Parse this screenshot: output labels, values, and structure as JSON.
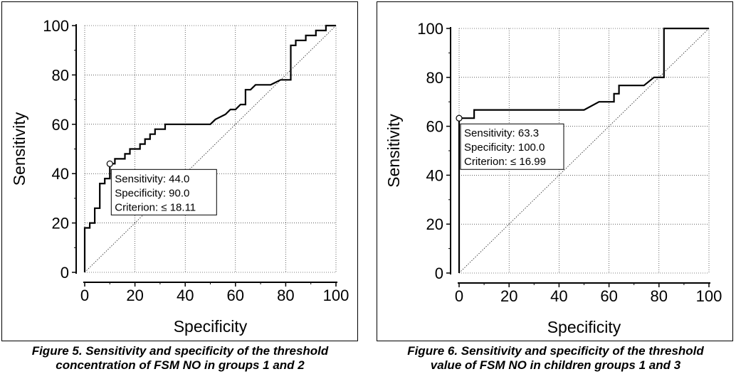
{
  "figures": [
    {
      "caption_line1": "Figure 5. Sensitivity and specificity of the threshold",
      "caption_line2": "concentration of FSM NO in groups 1 and 2"
    },
    {
      "caption_line1": "Figure 6. Sensitivity and specificity of the threshold",
      "caption_line2": "value of FSM NO in children groups 1 and 3"
    }
  ],
  "chart_data": [
    {
      "type": "line",
      "xlabel": "Specificity",
      "ylabel": "Sensitivity",
      "xlim": [
        0,
        100
      ],
      "ylim": [
        0,
        100
      ],
      "x_ticks": [
        0,
        20,
        40,
        60,
        80,
        100
      ],
      "y_ticks": [
        0,
        20,
        40,
        60,
        80,
        100
      ],
      "grid": true,
      "series": [
        {
          "role": "roc",
          "points": [
            [
              0,
              0
            ],
            [
              0,
              18
            ],
            [
              2,
              18
            ],
            [
              2,
              20
            ],
            [
              4,
              20
            ],
            [
              4,
              26
            ],
            [
              6,
              26
            ],
            [
              6,
              36
            ],
            [
              8,
              36
            ],
            [
              8,
              38
            ],
            [
              10,
              38
            ],
            [
              10,
              44
            ],
            [
              12,
              44
            ],
            [
              12,
              46
            ],
            [
              16,
              46
            ],
            [
              16,
              48
            ],
            [
              18,
              48
            ],
            [
              18,
              50
            ],
            [
              20,
              50
            ],
            [
              22,
              50
            ],
            [
              22,
              52
            ],
            [
              24,
              52
            ],
            [
              24,
              54
            ],
            [
              26,
              54
            ],
            [
              26,
              56
            ],
            [
              28,
              56
            ],
            [
              28,
              58
            ],
            [
              32,
              58
            ],
            [
              32,
              60
            ],
            [
              50,
              60
            ],
            [
              52,
              62
            ],
            [
              56,
              64
            ],
            [
              58,
              66
            ],
            [
              60,
              66
            ],
            [
              62,
              68
            ],
            [
              64,
              68
            ],
            [
              64,
              74
            ],
            [
              66,
              74
            ],
            [
              68,
              76
            ],
            [
              74,
              76
            ],
            [
              78,
              78
            ],
            [
              82,
              78
            ],
            [
              82,
              92
            ],
            [
              84,
              92
            ],
            [
              84,
              94
            ],
            [
              88,
              94
            ],
            [
              88,
              96
            ],
            [
              92,
              96
            ],
            [
              92,
              98
            ],
            [
              96,
              98
            ],
            [
              96,
              100
            ],
            [
              100,
              100
            ]
          ]
        },
        {
          "role": "reference",
          "points": [
            [
              0,
              0
            ],
            [
              100,
              100
            ]
          ]
        }
      ],
      "marker": {
        "x": 10,
        "y": 44
      },
      "annotation": {
        "sensitivity": "Sensitivity: 44.0",
        "specificity": "Specificity: 90.0",
        "criterion": "Criterion: ≤ 18.11"
      }
    },
    {
      "type": "line",
      "xlabel": "Specificity",
      "ylabel": "Sensitivity",
      "xlim": [
        0,
        100
      ],
      "ylim": [
        0,
        100
      ],
      "x_ticks": [
        0,
        20,
        40,
        60,
        80,
        100
      ],
      "y_ticks": [
        0,
        20,
        40,
        60,
        80,
        100
      ],
      "grid": true,
      "series": [
        {
          "role": "roc",
          "points": [
            [
              0,
              0
            ],
            [
              0,
              63.3
            ],
            [
              6,
              63.3
            ],
            [
              6,
              66.7
            ],
            [
              50,
              66.7
            ],
            [
              56,
              70
            ],
            [
              62,
              70
            ],
            [
              62,
              73.3
            ],
            [
              64,
              73.3
            ],
            [
              64,
              76.7
            ],
            [
              74,
              76.7
            ],
            [
              78,
              80
            ],
            [
              82,
              80
            ],
            [
              82,
              100
            ],
            [
              100,
              100
            ]
          ]
        },
        {
          "role": "reference",
          "points": [
            [
              0,
              0
            ],
            [
              100,
              100
            ]
          ]
        }
      ],
      "marker": {
        "x": 0,
        "y": 63.3
      },
      "annotation": {
        "sensitivity": "Sensitivity: 63.3",
        "specificity": "Specificity: 100.0",
        "criterion": "Criterion: ≤ 16.99"
      }
    }
  ]
}
